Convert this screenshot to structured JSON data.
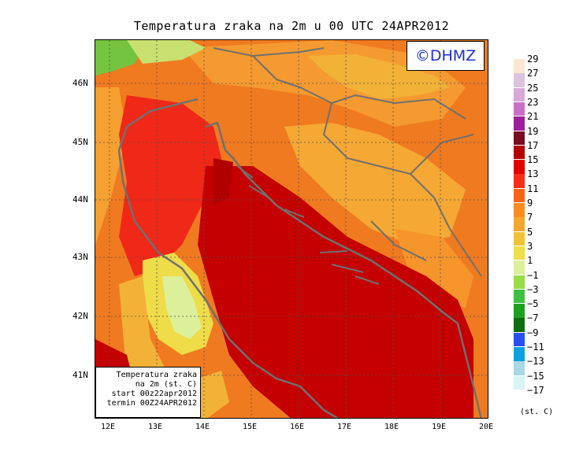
{
  "title": "Temperatura zraka na 2m u 00 UTC 24APR2012",
  "watermark": "©DHMZ",
  "info_box": {
    "line1": "Temperatura zraka",
    "line2": "na 2m (st. C)",
    "line3": "start 00z22apr2012",
    "line4": "termin 00Z24APR2012"
  },
  "lat_labels": [
    "46N",
    "45N",
    "44N",
    "43N",
    "42N",
    "41N"
  ],
  "lon_labels": [
    "12E",
    "13E",
    "14E",
    "15E",
    "16E",
    "17E",
    "18E",
    "19E",
    "20E"
  ],
  "legend": {
    "labels": [
      "29",
      "27",
      "25",
      "23",
      "21",
      "19",
      "17",
      "15",
      "13",
      "11",
      "9",
      "7",
      "5",
      "3",
      "1",
      "−1",
      "−3",
      "−5",
      "−7",
      "−9",
      "−11",
      "−13",
      "−15",
      "−17"
    ],
    "colors": [
      "#fde6d2",
      "#dcc4dc",
      "#d8a8d8",
      "#c870c8",
      "#9c209c",
      "#780c20",
      "#b40000",
      "#e40000",
      "#f82c18",
      "#fa6418",
      "#fc8c22",
      "#f2a830",
      "#f0c238",
      "#eede48",
      "#dcf09c",
      "#98dc48",
      "#40c040",
      "#20a020",
      "#106c10",
      "#2850f0",
      "#10a0e0",
      "#a8d8e4",
      "#d8f4f4",
      "#ffffff"
    ],
    "unit": "(st. C)"
  }
}
